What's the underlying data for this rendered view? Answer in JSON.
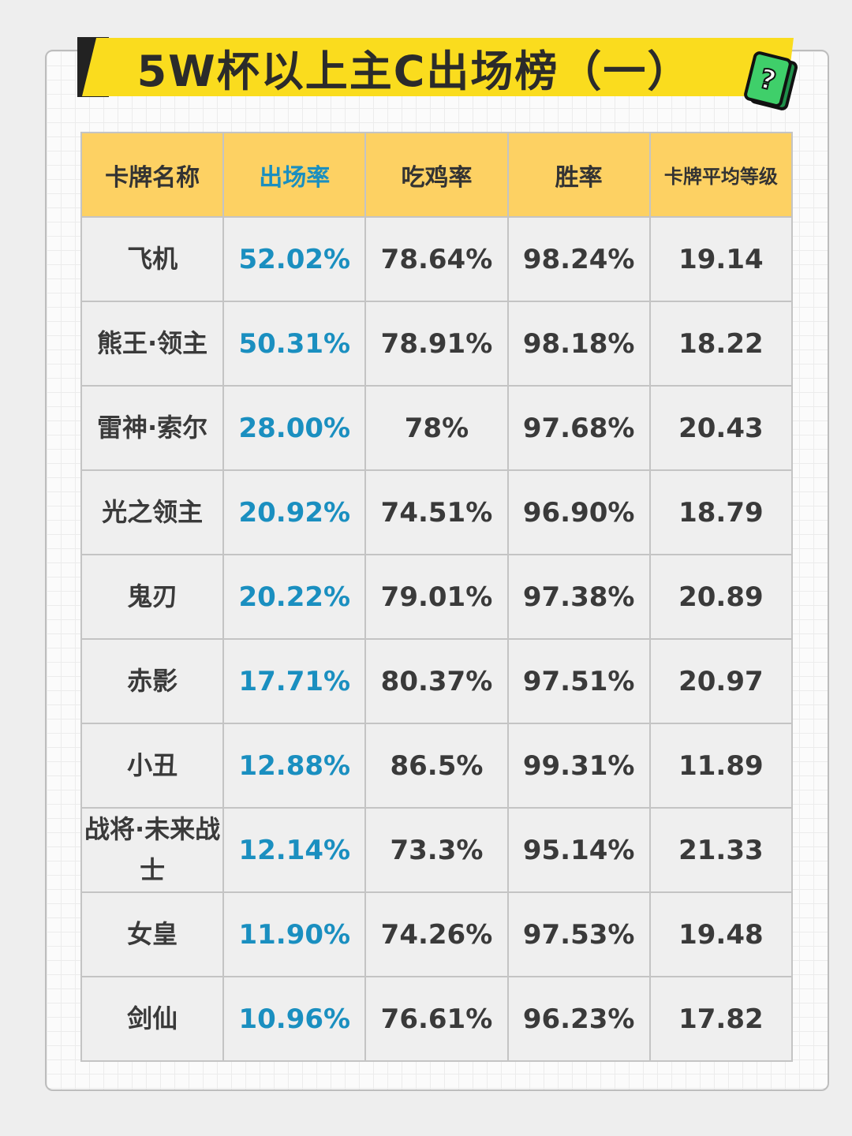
{
  "title": "5W杯以上主C出场榜（一）",
  "icon": "mystery-card-icon",
  "colors": {
    "header_bg": "#fdd163",
    "highlight": "#1a8fc0",
    "banner": "#fadc1e"
  },
  "table": {
    "headers": [
      "卡牌名称",
      "出场率",
      "吃鸡率",
      "胜率",
      "卡牌平均等级"
    ],
    "rows": [
      [
        "飞机",
        "52.02%",
        "78.64%",
        "98.24%",
        "19.14"
      ],
      [
        "熊王·领主",
        "50.31%",
        "78.91%",
        "98.18%",
        "18.22"
      ],
      [
        "雷神·索尔",
        "28.00%",
        "78%",
        "97.68%",
        "20.43"
      ],
      [
        "光之领主",
        "20.92%",
        "74.51%",
        "96.90%",
        "18.79"
      ],
      [
        "鬼刃",
        "20.22%",
        "79.01%",
        "97.38%",
        "20.89"
      ],
      [
        "赤影",
        "17.71%",
        "80.37%",
        "97.51%",
        "20.97"
      ],
      [
        "小丑",
        "12.88%",
        "86.5%",
        "99.31%",
        "11.89"
      ],
      [
        "战将·未来战士",
        "12.14%",
        "73.3%",
        "95.14%",
        "21.33"
      ],
      [
        "女皇",
        "11.90%",
        "74.26%",
        "97.53%",
        "19.48"
      ],
      [
        "剑仙",
        "10.96%",
        "76.61%",
        "96.23%",
        "17.82"
      ]
    ]
  }
}
